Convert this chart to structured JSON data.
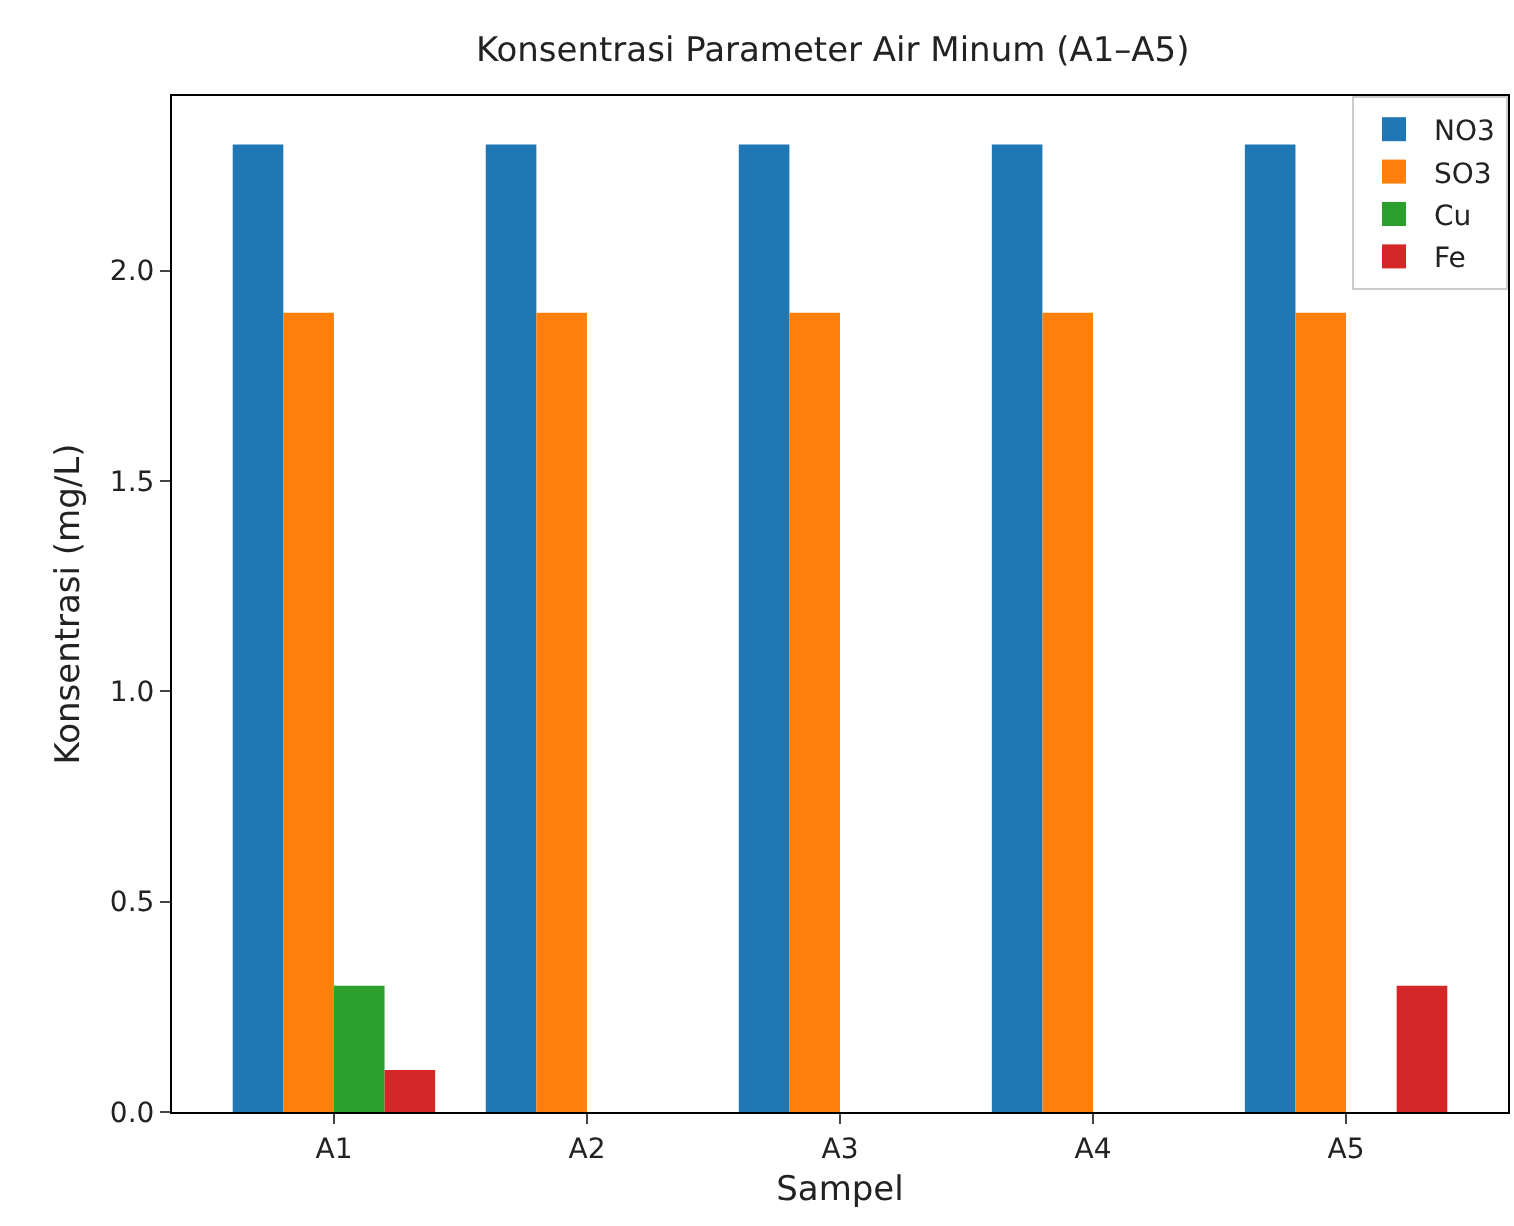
{
  "chart_data": {
    "type": "bar",
    "title": "Konsentrasi Parameter Air Minum (A1–A5)",
    "xlabel": "Sampel",
    "ylabel": "Konsentrasi (mg/L)",
    "categories": [
      "A1",
      "A2",
      "A3",
      "A4",
      "A5"
    ],
    "series": [
      {
        "name": "NO3",
        "color": "#1f77b4",
        "values": [
          2.3,
          2.3,
          2.3,
          2.3,
          2.3
        ]
      },
      {
        "name": "SO3",
        "color": "#ff7f0e",
        "values": [
          1.9,
          1.9,
          1.9,
          1.9,
          1.9
        ]
      },
      {
        "name": "Cu",
        "color": "#2ca02c",
        "values": [
          0.3,
          0,
          0,
          0,
          0
        ]
      },
      {
        "name": "Fe",
        "color": "#d62728",
        "values": [
          0.1,
          0,
          0,
          0,
          0.3
        ]
      }
    ],
    "ylim": [
      0,
      2.415
    ],
    "yticks": [
      {
        "value": 0,
        "label": "0.0"
      },
      {
        "value": 0.5,
        "label": "0.5"
      },
      {
        "value": 1,
        "label": "1.0"
      },
      {
        "value": 1.5,
        "label": "1.5"
      },
      {
        "value": 2,
        "label": "2.0"
      }
    ],
    "grid": false,
    "legend": "top right"
  }
}
